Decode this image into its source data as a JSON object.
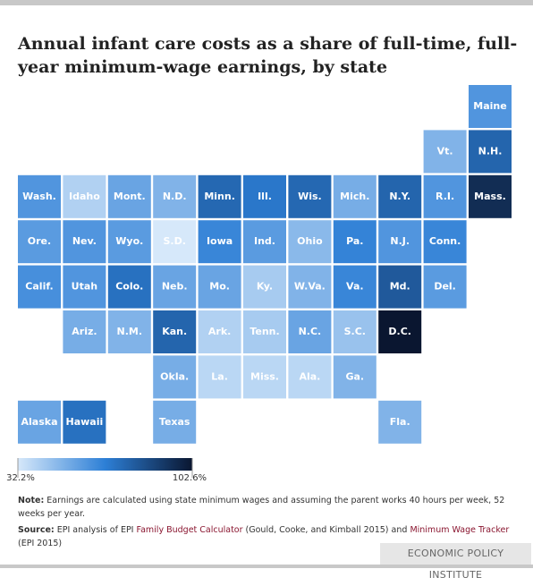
{
  "chart_data": {
    "type": "tilemap",
    "title": "Annual infant care costs as a share of full-time, full-year minimum-wage earnings, by state",
    "states": [
      {
        "name": "Maine",
        "value": 60
      },
      {
        "name": "Vt.",
        "value": 50
      },
      {
        "name": "N.H.",
        "value": 76
      },
      {
        "name": "Wash.",
        "value": 60
      },
      {
        "name": "Idaho",
        "value": 40
      },
      {
        "name": "Mont.",
        "value": 55
      },
      {
        "name": "N.D.",
        "value": 50
      },
      {
        "name": "Minn.",
        "value": 75
      },
      {
        "name": "Ill.",
        "value": 70
      },
      {
        "name": "Wis.",
        "value": 75
      },
      {
        "name": "Mich.",
        "value": 52
      },
      {
        "name": "N.Y.",
        "value": 76
      },
      {
        "name": "R.I.",
        "value": 60
      },
      {
        "name": "Mass.",
        "value": 95
      },
      {
        "name": "Ore.",
        "value": 58
      },
      {
        "name": "Nev.",
        "value": 60
      },
      {
        "name": "Wyo.",
        "value": 58
      },
      {
        "name": "S.D.",
        "value": 32.2
      },
      {
        "name": "Iowa",
        "value": 65
      },
      {
        "name": "Ind.",
        "value": 58
      },
      {
        "name": "Ohio",
        "value": 48
      },
      {
        "name": "Pa.",
        "value": 66
      },
      {
        "name": "N.J.",
        "value": 60
      },
      {
        "name": "Conn.",
        "value": 65
      },
      {
        "name": "Calif.",
        "value": 62
      },
      {
        "name": "Utah",
        "value": 60
      },
      {
        "name": "Colo.",
        "value": 72
      },
      {
        "name": "Neb.",
        "value": 55
      },
      {
        "name": "Mo.",
        "value": 55
      },
      {
        "name": "Ky.",
        "value": 42
      },
      {
        "name": "W.Va.",
        "value": 50
      },
      {
        "name": "Va.",
        "value": 65
      },
      {
        "name": "Md.",
        "value": 80
      },
      {
        "name": "Del.",
        "value": 58
      },
      {
        "name": "Ariz.",
        "value": 52
      },
      {
        "name": "N.M.",
        "value": 50
      },
      {
        "name": "Kan.",
        "value": 76
      },
      {
        "name": "Ark.",
        "value": 40
      },
      {
        "name": "Tenn.",
        "value": 42
      },
      {
        "name": "N.C.",
        "value": 55
      },
      {
        "name": "S.C.",
        "value": 45
      },
      {
        "name": "D.C.",
        "value": 102.6
      },
      {
        "name": "Okla.",
        "value": 52
      },
      {
        "name": "La.",
        "value": 38
      },
      {
        "name": "Miss.",
        "value": 38
      },
      {
        "name": "Ala.",
        "value": 38
      },
      {
        "name": "Ga.",
        "value": 50
      },
      {
        "name": "Alaska",
        "value": 55
      },
      {
        "name": "Hawaii",
        "value": 72
      },
      {
        "name": "Texas",
        "value": 52
      },
      {
        "name": "Fla.",
        "value": 50
      }
    ],
    "colors": [
      "#d6e8fa",
      "#2d7fd6",
      "#0a1630"
    ],
    "colorlim": [
      32.2,
      102.6
    ],
    "colorticks": [
      {
        "value": 32.2,
        "label": "32.2%"
      },
      {
        "value": 102.6,
        "label": "102.6%"
      }
    ]
  },
  "note": {
    "label": "Note:",
    "text": "Earnings are calculated using state minimum wages and assuming the parent works 40 hours per week, 52 weeks per year."
  },
  "source": {
    "label": "Source:",
    "parts": [
      "EPI analysis of EPI ",
      "Family Budget Calculator",
      " (Gould, Cooke, and Kimball 2015) and ",
      "Minimum Wage Tracker",
      " (EPI 2015)"
    ]
  },
  "footer": "ECONOMIC POLICY INSTITUTE"
}
